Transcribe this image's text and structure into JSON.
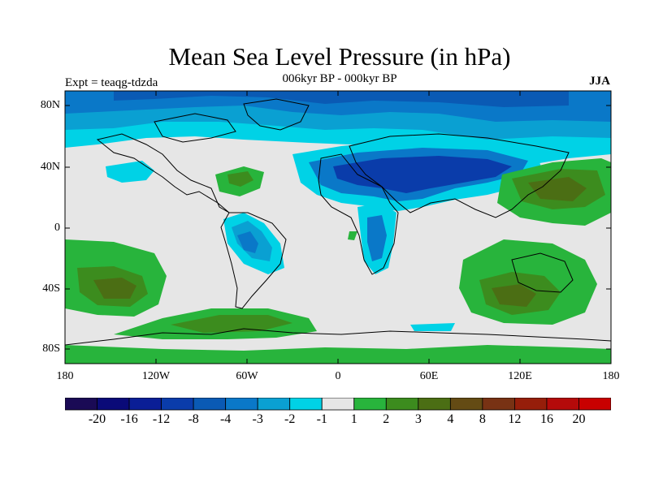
{
  "title": "Mean Sea Level Pressure (in hPa)",
  "subtitle": "006kyr BP - 000kyr BP",
  "experiment": "Expt = teaqg-tdzda",
  "season": "JJA",
  "lat_labels": [
    "80N",
    "40N",
    "0",
    "40S",
    "80S"
  ],
  "lon_labels": [
    "180",
    "120W",
    "60W",
    "0",
    "60E",
    "120E",
    "180"
  ],
  "colorbar": {
    "labels": [
      "-20",
      "-16",
      "-12",
      "-8",
      "-4",
      "-3",
      "-2",
      "-1",
      "1",
      "2",
      "3",
      "4",
      "8",
      "12",
      "16",
      "20"
    ],
    "colors": [
      "#1a0a55",
      "#0a0a78",
      "#0a1e96",
      "#0a3caa",
      "#0a5ab4",
      "#0a78c8",
      "#0aa0d2",
      "#00d2e6",
      "#e6e6e6",
      "#28b43c",
      "#3c8c1e",
      "#4b6e14",
      "#644b14",
      "#783214",
      "#961e0a",
      "#b40a0a",
      "#c80000"
    ]
  },
  "palette": {
    "ocean_neutral": "#e6e6e6",
    "land_outline": "#000000"
  },
  "colorbar_label_font": "14pt"
}
